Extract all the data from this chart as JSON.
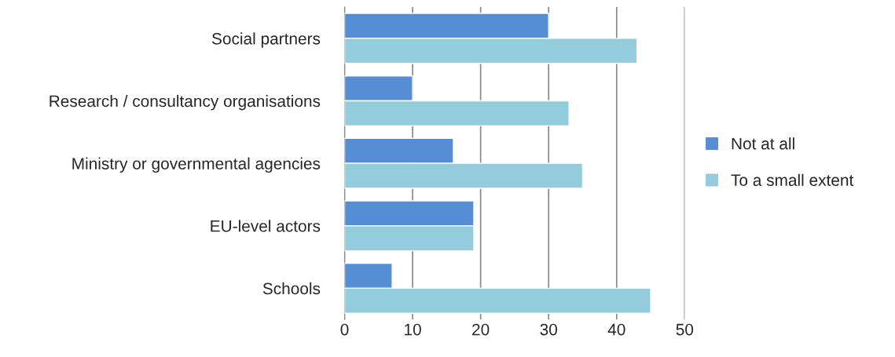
{
  "chart_data": {
    "type": "bar",
    "orientation": "horizontal",
    "categories": [
      "Social partners",
      "Research / consultancy organisations",
      "Ministry or governmental agencies",
      "EU-level actors",
      "Schools"
    ],
    "series": [
      {
        "name": "Not at all",
        "color": "#558ed5",
        "values": [
          30,
          10,
          16,
          19,
          7
        ]
      },
      {
        "name": "To a small extent",
        "color": "#93cddd",
        "values": [
          43,
          33,
          35,
          19,
          45
        ]
      }
    ],
    "xlim": [
      0,
      50
    ],
    "xticks": [
      0,
      10,
      20,
      30,
      40,
      50
    ],
    "grid": "x",
    "legend": "right"
  }
}
